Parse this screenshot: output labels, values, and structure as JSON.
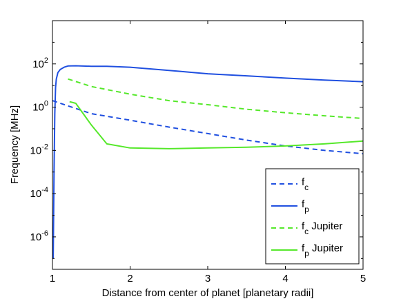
{
  "chart_data": {
    "type": "line",
    "xlabel": "Distance from center of planet [planetary radii]",
    "ylabel": "Frequency [MHz]",
    "xlim": [
      1,
      5
    ],
    "ylim_log10": [
      -7.5,
      4
    ],
    "yscale": "log",
    "grid": false,
    "legend_position": "bottom-right",
    "x_ticks": [
      "1",
      "2",
      "3",
      "4",
      "5"
    ],
    "y_ticks": [
      {
        "base": "10",
        "exp": "-6",
        "value": 1e-06
      },
      {
        "base": "10",
        "exp": "-4",
        "value": 0.0001
      },
      {
        "base": "10",
        "exp": "-2",
        "value": 0.01
      },
      {
        "base": "10",
        "exp": "0",
        "value": 1
      },
      {
        "base": "10",
        "exp": "2",
        "value": 100
      }
    ],
    "series": [
      {
        "name": "f_c",
        "legend_main": "f",
        "legend_sub": "c",
        "legend_suffix": "",
        "color": "#1f4fe0",
        "dash": "dashed",
        "x": [
          1.0,
          1.25,
          1.5,
          2.0,
          2.5,
          3.0,
          3.5,
          4.0,
          4.5,
          5.0
        ],
        "y": [
          2.0,
          1.0,
          0.5,
          0.25,
          0.12,
          0.06,
          0.03,
          0.016,
          0.01,
          0.007
        ]
      },
      {
        "name": "f_p",
        "legend_main": "f",
        "legend_sub": "p",
        "legend_suffix": "",
        "color": "#1f4fe0",
        "dash": "solid",
        "x": [
          1.01,
          1.02,
          1.03,
          1.04,
          1.05,
          1.07,
          1.1,
          1.15,
          1.2,
          1.3,
          1.5,
          1.7,
          2.0,
          2.5,
          3.0,
          3.5,
          4.0,
          4.5,
          5.0
        ],
        "y": [
          1e-07,
          0.001,
          0.5,
          8,
          20,
          40,
          55,
          70,
          80,
          82,
          78,
          78,
          70,
          50,
          35,
          28,
          22,
          18,
          15
        ]
      },
      {
        "name": "f_c Jupiter",
        "legend_main": "f",
        "legend_sub": "c",
        "legend_suffix": " Jupiter",
        "color": "#55e82a",
        "dash": "dashed",
        "x": [
          1.2,
          1.5,
          2.0,
          2.5,
          3.0,
          3.5,
          4.0,
          4.5,
          5.0
        ],
        "y": [
          20,
          9,
          4,
          2,
          1.3,
          0.8,
          0.55,
          0.4,
          0.3
        ]
      },
      {
        "name": "f_p Jupiter",
        "legend_main": "f",
        "legend_sub": "p",
        "legend_suffix": " Jupiter",
        "color": "#55e82a",
        "dash": "solid",
        "x": [
          1.22,
          1.3,
          1.5,
          1.7,
          2.0,
          2.5,
          3.0,
          3.5,
          4.0,
          4.5,
          5.0
        ],
        "y": [
          1.8,
          1.5,
          0.15,
          0.02,
          0.013,
          0.012,
          0.013,
          0.014,
          0.016,
          0.02,
          0.027
        ]
      }
    ]
  }
}
